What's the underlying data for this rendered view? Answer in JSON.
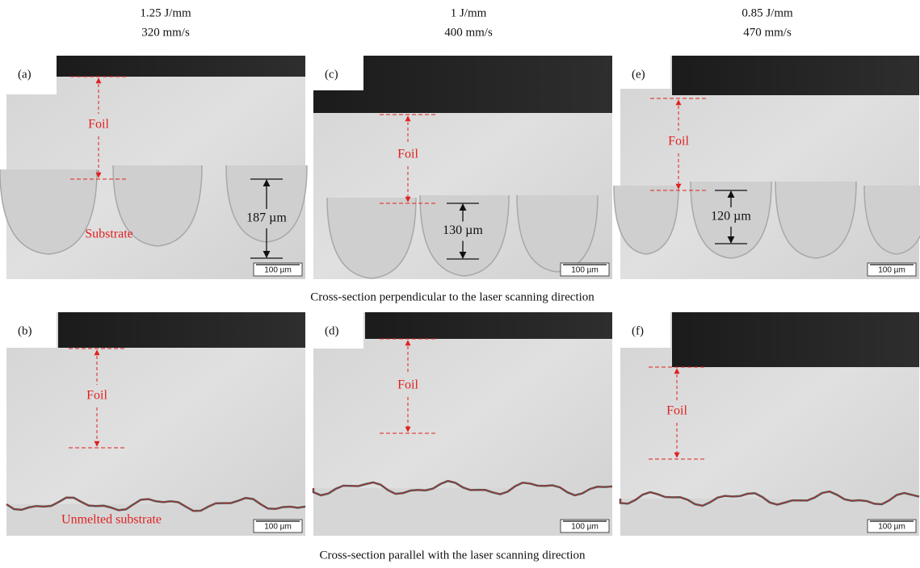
{
  "header": {
    "columns": [
      {
        "energy": "1.25 J/mm",
        "speed": "320 mm/s"
      },
      {
        "energy": "1 J/mm",
        "speed": "400 mm/s"
      },
      {
        "energy": "0.85 J/mm",
        "speed": "470 mm/s"
      }
    ]
  },
  "rows": [
    {
      "panels": [
        {
          "label": "(a)",
          "foil": "Foil",
          "depth": "187 µm",
          "note": "Substrate",
          "scale_bar": "100 µm"
        },
        {
          "label": "(c)",
          "foil": "Foil",
          "depth": "130 µm",
          "scale_bar": "100 µm"
        },
        {
          "label": "(e)",
          "foil": "Foil",
          "depth": "120 µm",
          "scale_bar": "100 µm"
        }
      ],
      "caption": "Cross-section perpendicular to the laser scanning direction"
    },
    {
      "panels": [
        {
          "label": "(b)",
          "foil": "Foil",
          "note": "Unmelted substrate",
          "scale_bar": "100 µm"
        },
        {
          "label": "(d)",
          "foil": "Foil",
          "scale_bar": "100 µm"
        },
        {
          "label": "(f)",
          "foil": "Foil",
          "scale_bar": "100 µm"
        }
      ],
      "caption": "Cross-section parallel with the laser scanning direction"
    }
  ]
}
